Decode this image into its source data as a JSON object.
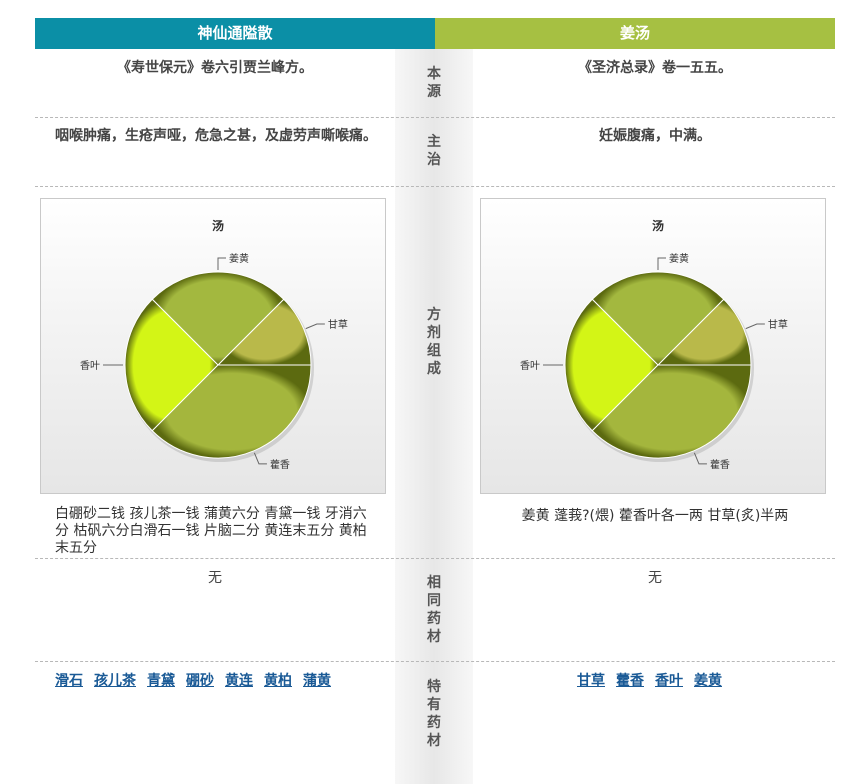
{
  "header": {
    "left_title": "神仙通隘散",
    "right_title": "姜汤"
  },
  "labels": {
    "source": [
      "本",
      "源"
    ],
    "indication": [
      "主",
      "治"
    ],
    "composition": [
      "方",
      "剂",
      "组",
      "成"
    ],
    "common_herbs": [
      "相",
      "同",
      "药",
      "材"
    ],
    "unique_herbs": [
      "特",
      "有",
      "药",
      "材"
    ]
  },
  "left": {
    "source": "《寿世保元》卷六引贾兰峰方。",
    "indication": "咽喉肿痛，生疮声哑，危急之甚，及虚劳声嘶喉痛。",
    "composition": "白硼砂二钱  孩儿茶一钱  蒲黄六分  青黛一钱  牙消六分  枯矾六分白滑石一钱  片脑二分  黄连末五分  黄柏末五分",
    "common": "无",
    "unique_links": [
      "滑石",
      "孩儿茶",
      "青黛",
      "硼砂",
      "黄连",
      "黄柏",
      "蒲黄"
    ]
  },
  "right": {
    "source": "《圣济总录》卷一五五。",
    "indication": "妊娠腹痛，中满。",
    "composition": "姜黄  蓬莪?(煨) 藿香叶各一两  甘草(炙)半两",
    "common": "无",
    "unique_links": [
      "甘草",
      "藿香",
      "香叶",
      "姜黄"
    ]
  },
  "colors": {
    "left_header": "#0b8fa6",
    "right_header": "#a6c042"
  },
  "chart_data": [
    {
      "type": "pie",
      "title": "汤",
      "categories": [
        "甘草",
        "姜黄",
        "香叶",
        "藿香"
      ],
      "values": [
        12.5,
        25,
        25,
        37.5
      ],
      "colors": [
        "#b9b94a",
        "#a3b83f",
        "#d3f516",
        "#a4b63d"
      ]
    },
    {
      "type": "pie",
      "title": "汤",
      "categories": [
        "甘草",
        "姜黄",
        "香叶",
        "藿香"
      ],
      "values": [
        12.5,
        25,
        25,
        37.5
      ],
      "colors": [
        "#b9b94a",
        "#a3b83f",
        "#d3f516",
        "#a4b63d"
      ]
    }
  ]
}
